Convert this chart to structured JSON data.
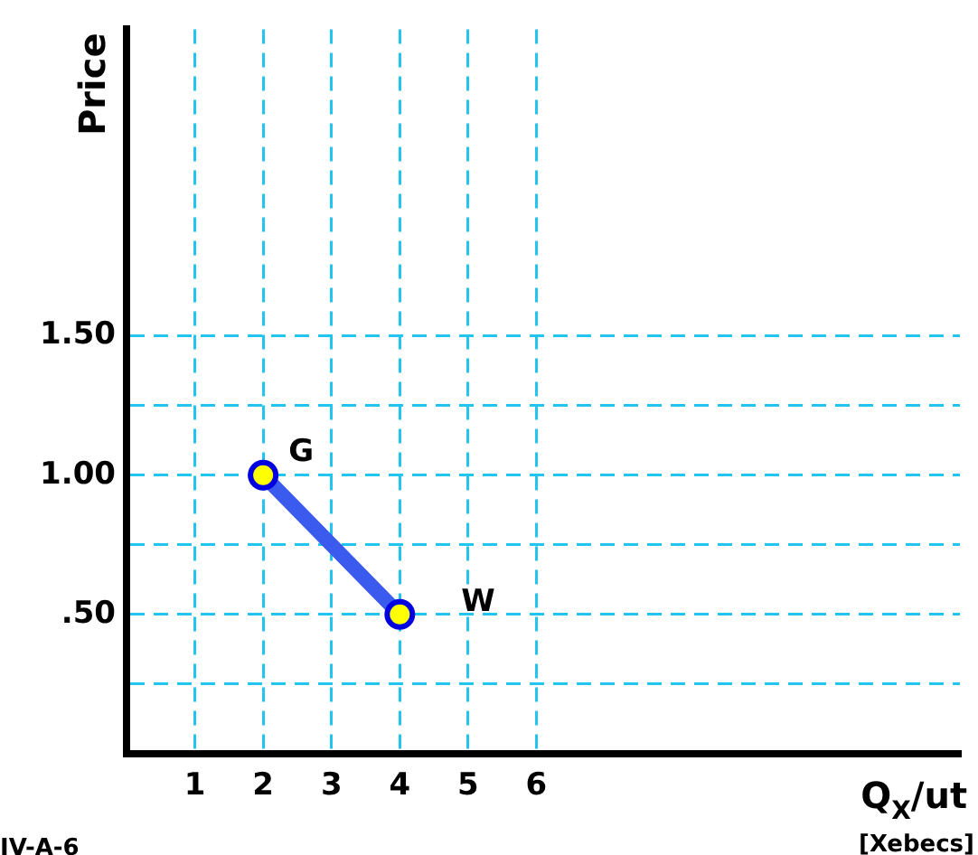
{
  "chart_data": {
    "type": "line",
    "xlabel": "Q$_{X}$/ut",
    "ylabel": "Price",
    "x": [
      2,
      4
    ],
    "series": [
      {
        "color": "#3b5bef",
        "values": [
          1.0,
          0.5
        ]
      }
    ],
    "marker": "circle",
    "grid": true,
    "xlim": [
      0,
      12.2
    ],
    "ylim": [
      0,
      2.6
    ],
    "xticks": [
      1,
      2,
      3,
      4,
      5,
      6
    ],
    "yticks": [
      {
        "value": 0.25,
        "label": null
      },
      {
        "value": 0.5,
        "label": ".50"
      },
      {
        "value": 0.75,
        "label": null
      },
      {
        "value": 1,
        "label": "1.00"
      },
      {
        "value": 1.25,
        "label": null
      },
      {
        "value": 1.5,
        "label": "1.50"
      }
    ],
    "annotations": [
      {
        "text": "G",
        "x": 2,
        "y": 1.0
      },
      {
        "text": "W",
        "x": 4,
        "y": 0.5
      },
      "[Xebecs]",
      "IV-A-6"
    ]
  }
}
